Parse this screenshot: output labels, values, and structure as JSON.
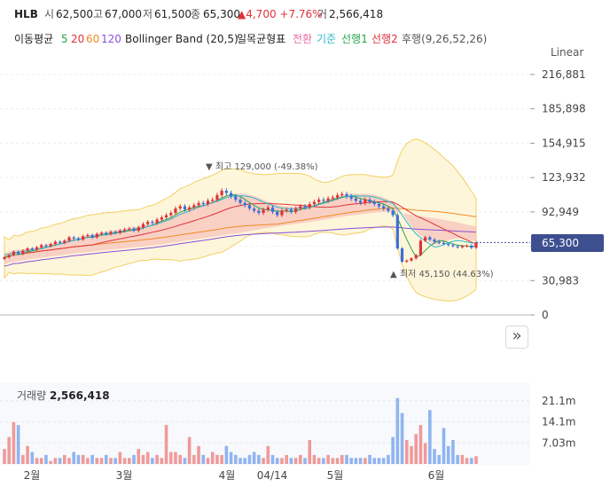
{
  "header": {
    "name": "HLB",
    "open_label": "시",
    "open": "62,500",
    "high_label": "고",
    "high": "67,000",
    "low_label": "저",
    "low": "61,500",
    "close_label": "종",
    "close": "65,300",
    "change": "▲4,700 +7.76%",
    "volume_label": "거",
    "volume": "2,566,418"
  },
  "indicators": {
    "ma_label": "이동평균",
    "ma5": "5",
    "ma20": "20",
    "ma60": "60",
    "ma120": "120",
    "bb": "Bollinger Band (20,5)",
    "ichimoku": "일목균형표",
    "tenkan": "전환",
    "kijun": "기준",
    "senkou1": "선행1",
    "senkou2": "선행2",
    "chikou": "후행(9,26,52,26)"
  },
  "colors": {
    "up": "#e0323c",
    "down": "#3b6fd8",
    "ma5": "#2aa54a",
    "ma20": "#e0323c",
    "ma60": "#f08a24",
    "ma120": "#8a4fd8",
    "bb_band": "#f0d060",
    "cloud": "#f4b0b0",
    "kijun": "#2bb8c8",
    "price_tag": "#3d4f8f"
  },
  "scale_label": "Linear",
  "current_price": "65,300",
  "annotations": {
    "high": "▼ 최고 129,000 (-49.38%)",
    "low": "▲ 최저 45,150 (44.63%)"
  },
  "volume_panel": {
    "label": "거래량",
    "value": "2,566,418",
    "ticks": [
      "21.1m",
      "14.1m",
      "7.03m"
    ]
  },
  "chart_data": {
    "type": "candlestick",
    "y_ticks": [
      216881,
      185898,
      154915,
      123932,
      92949,
      61966,
      30983,
      0
    ],
    "y_tick_labels": [
      "216,881",
      "185,898",
      "154,915",
      "123,932",
      "92,949",
      "",
      "30,983",
      "0"
    ],
    "x_labels": [
      "2월",
      "3월",
      "4월",
      "04/14",
      "5월",
      "6월"
    ],
    "close": [
      52000,
      54000,
      57000,
      55000,
      58000,
      60000,
      59000,
      61000,
      63000,
      62000,
      64000,
      66000,
      65000,
      67000,
      70000,
      69000,
      68000,
      71000,
      72000,
      70000,
      73000,
      74000,
      73000,
      75000,
      74000,
      76000,
      77000,
      78000,
      76000,
      79000,
      82000,
      84000,
      83000,
      86000,
      88000,
      90000,
      92000,
      96000,
      98000,
      95000,
      97000,
      99000,
      101000,
      100000,
      103000,
      104000,
      108000,
      112000,
      110000,
      107000,
      104000,
      101000,
      99000,
      96000,
      94000,
      92000,
      95000,
      97000,
      93000,
      90000,
      94000,
      95000,
      93000,
      96000,
      98000,
      97000,
      100000,
      102000,
      104000,
      103000,
      105000,
      106000,
      108000,
      109000,
      107000,
      105000,
      103000,
      101000,
      104000,
      102000,
      100000,
      98000,
      96000,
      94000,
      90000,
      60000,
      48000,
      49000,
      51000,
      54000,
      67000,
      70000,
      68000,
      66000,
      65000,
      64000,
      63000,
      62000,
      61000,
      62000,
      62500,
      60600,
      65300
    ],
    "volume_m": [
      5,
      9,
      14,
      13,
      3,
      6,
      4,
      2,
      2,
      3,
      1,
      2,
      2,
      3,
      2,
      4,
      3,
      3,
      2,
      3,
      2,
      2,
      3,
      2,
      2,
      4,
      2,
      2,
      3,
      5,
      3,
      4,
      2,
      3,
      2,
      13,
      4,
      4,
      3,
      2,
      9,
      3,
      6,
      3,
      2,
      4,
      3,
      3,
      6,
      4,
      3,
      2,
      2,
      3,
      4,
      3,
      2,
      6,
      3,
      2,
      2,
      3,
      2,
      2,
      3,
      2,
      8,
      3,
      2,
      2,
      3,
      2,
      2,
      3,
      3,
      2,
      2,
      2,
      2,
      3,
      2,
      2,
      2,
      3,
      9,
      22,
      17,
      8,
      6,
      10,
      13,
      7,
      18,
      5,
      3,
      12,
      6,
      8,
      3,
      3,
      2,
      2,
      2.6
    ]
  }
}
